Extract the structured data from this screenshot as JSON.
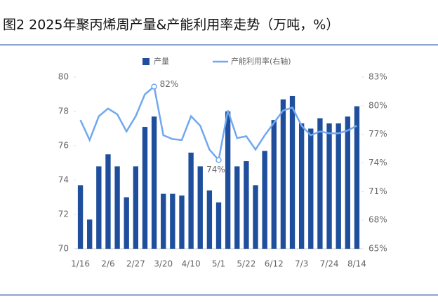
{
  "chart_data": {
    "type": "bar_line",
    "title": "图2 2025年聚丙烯周产量&产能利用率走势（万吨，%）",
    "categories": [
      "1/16",
      null,
      null,
      "2/6",
      null,
      null,
      "2/27",
      null,
      null,
      "3/20",
      null,
      null,
      "4/10",
      null,
      null,
      "5/1",
      null,
      null,
      "5/22",
      null,
      null,
      "6/12",
      null,
      null,
      "7/3",
      null,
      null,
      "7/24",
      null,
      null,
      "8/14"
    ],
    "series": [
      {
        "name": "产量",
        "type": "bar",
        "color": "#1f4e9c",
        "values": [
          73.7,
          71.7,
          74.8,
          75.5,
          74.8,
          73.0,
          74.8,
          77.1,
          77.7,
          73.2,
          73.2,
          73.1,
          75.6,
          74.8,
          73.4,
          72.7,
          78.0,
          74.8,
          75.1,
          73.7,
          75.7,
          77.5,
          78.7,
          78.9,
          77.3,
          77.0,
          77.6,
          77.3,
          77.3,
          77.7,
          78.3
        ]
      },
      {
        "name": "产能利用率(右轴)",
        "type": "line",
        "axis": "y2",
        "color": "#6fa8f0",
        "values": [
          78.5,
          76.4,
          78.9,
          79.7,
          79.1,
          77.3,
          78.9,
          81.2,
          82.0,
          76.9,
          76.5,
          76.4,
          78.9,
          77.9,
          75.4,
          74.3,
          79.5,
          76.6,
          76.8,
          75.4,
          76.9,
          78.2,
          79.5,
          79.8,
          77.9,
          76.9,
          77.3,
          77.1,
          77.1,
          77.4,
          77.9
        ],
        "value_labels": [
          null,
          null,
          null,
          null,
          null,
          null,
          null,
          null,
          "82%",
          null,
          null,
          null,
          null,
          null,
          null,
          "74%",
          null,
          null,
          null,
          null,
          null,
          null,
          null,
          null,
          null,
          null,
          null,
          null,
          null,
          null,
          null
        ]
      }
    ],
    "ylim": [
      70,
      80
    ],
    "yticks": [
      70,
      72,
      74,
      76,
      78,
      80
    ],
    "y2lim": [
      65,
      83
    ],
    "y2ticks": [
      {
        "value": 65,
        "label": "65%"
      },
      {
        "value": 68,
        "label": "68%"
      },
      {
        "value": 71,
        "label": "71%"
      },
      {
        "value": 74,
        "label": "74%"
      },
      {
        "value": 77,
        "label": "77%"
      },
      {
        "value": 80,
        "label": "80%"
      },
      {
        "value": 83,
        "label": "83%"
      }
    ],
    "legend": "top"
  }
}
